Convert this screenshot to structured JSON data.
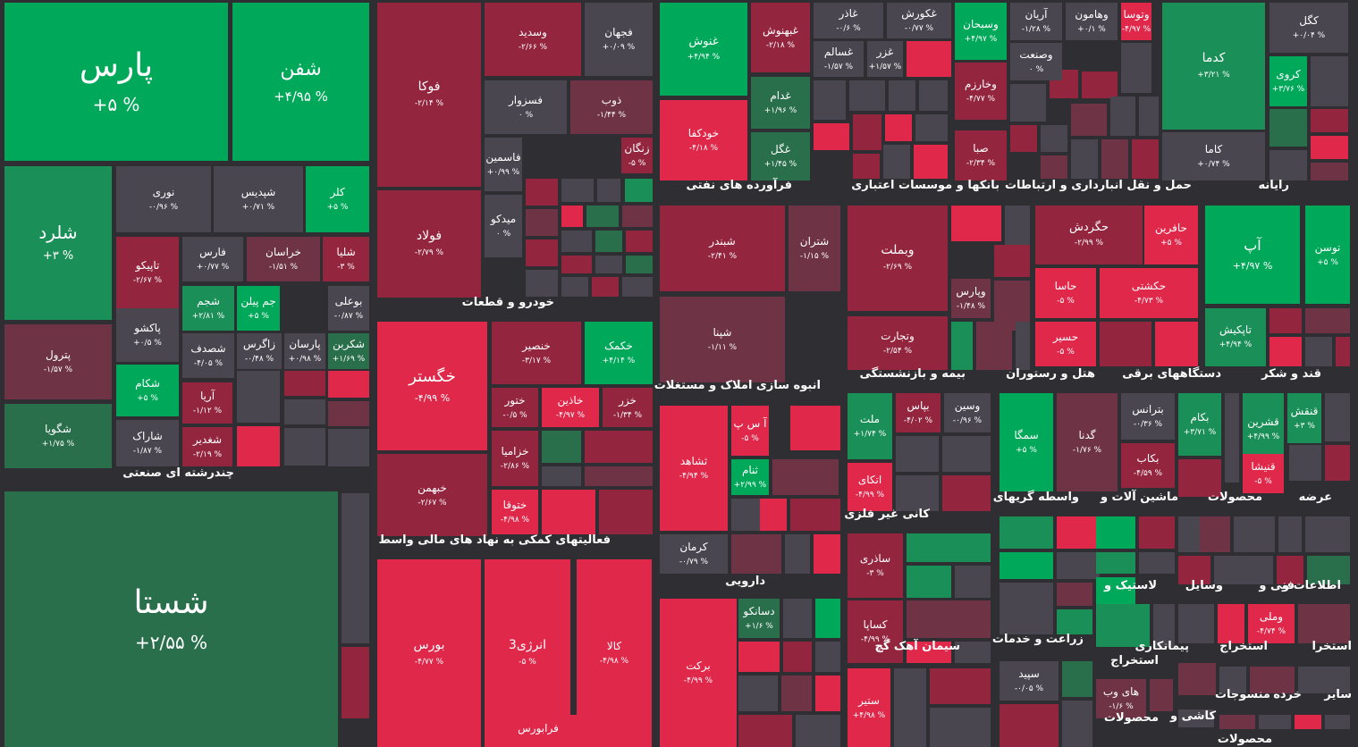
{
  "colors": {
    "strong_gain": "#00a85a",
    "gain": "#1b8f58",
    "weak_gain": "#2a6f4c",
    "neutral": "#4a4650",
    "strong_loss": "#e0284b",
    "loss": "#93253f",
    "weak_loss": "#6e3446",
    "background": "#2f2f33"
  },
  "sectors": [
    "چندرشته ای صنعتی",
    "خودرو و قطعات",
    "فعالیتهای کمکی به نهاد های مالی واسط",
    "فرآورده های نفتی",
    "بانکها و موسسات اعتباری",
    "حمل و نقل انبارداری و ارتباطات",
    "رایانه",
    "انبوه سازی املاک و مستغلات",
    "بیمه و بازنشستگی",
    "هتل و رستوران",
    "دستگاههای برقی",
    "قند و شکر",
    "دارویی",
    "کانی غیر فلزی",
    "واسطه گریهای",
    "ماشین آلات و",
    "محصولات",
    "عرضه",
    "سیمان آهک گچ",
    "زراعت و خدمات",
    "لاستیک و",
    "وسایل",
    "فنی و",
    "اطلاعات و",
    "استخراج",
    "پیمانکاری",
    "استخراج",
    "استخرا",
    "منسوجات",
    "خرده",
    "سایر",
    "کاشی و",
    "محصولات",
    "محصولات"
  ],
  "tiles": [
    {
      "s": "پارس",
      "c": "+۵ %"
    },
    {
      "s": "شفن",
      "c": "+۴/۹۵ %"
    },
    {
      "s": "شلرد",
      "c": "+۳ %"
    },
    {
      "s": "نوری",
      "c": "-۰/۹۶ %"
    },
    {
      "s": "شپدیس",
      "c": "+۰/۷۱ %"
    },
    {
      "s": "کلر",
      "c": "+۵ %"
    },
    {
      "s": "تاپیکو",
      "c": "-۲/۶۷ %"
    },
    {
      "s": "فارس",
      "c": "+۰/۷۷ %"
    },
    {
      "s": "خراسان",
      "c": "-۱/۵۱ %"
    },
    {
      "s": "شلیا",
      "c": "-۳ %"
    },
    {
      "s": "شجم",
      "c": "+۲/۸۱ %"
    },
    {
      "s": "جم پیلن",
      "c": "+۵ %"
    },
    {
      "s": "بوعلی",
      "c": "-۰/۸۷ %"
    },
    {
      "s": "پاکشو",
      "c": "+۰/۵ %"
    },
    {
      "s": "شصدف",
      "c": "-۴/۰۵ %"
    },
    {
      "s": "زاگرس",
      "c": "-۰/۴۸ %"
    },
    {
      "s": "پارسان",
      "c": "+۰/۹۸ %"
    },
    {
      "s": "شکربن",
      "c": "+۱/۶۹ %"
    },
    {
      "s": "پترول",
      "c": "-۱/۵۷ %"
    },
    {
      "s": "شکام",
      "c": "+۵ %"
    },
    {
      "s": "آریا",
      "c": "-۱/۱۲ %"
    },
    {
      "s": "شگویا",
      "c": "+۱/۷۵ %"
    },
    {
      "s": "شاراک",
      "c": "-۱/۸۷ %"
    },
    {
      "s": "شغدیر",
      "c": "-۲/۱۹ %"
    },
    {
      "s": "شستا",
      "c": "+۲/۵۵ %"
    },
    {
      "s": "فوکا",
      "c": "-۲/۱۴ %"
    },
    {
      "s": "وسدید",
      "c": "-۲/۶۶ %"
    },
    {
      "s": "فجهان",
      "c": "+۰/۰۹ %"
    },
    {
      "s": "فسزوار",
      "c": "۰ %"
    },
    {
      "s": "ذوب",
      "c": "-۱/۴۴ %"
    },
    {
      "s": "زنگان",
      "c": "-۵ %"
    },
    {
      "s": "فاسمین",
      "c": "+۰/۹۹ %"
    },
    {
      "s": "فولاد",
      "c": "-۲/۷۹ %"
    },
    {
      "s": "میدکو",
      "c": "۰ %"
    },
    {
      "s": "خگستر",
      "c": "-۴/۹۹ %"
    },
    {
      "s": "خنصیر",
      "c": "-۳/۱۷ %"
    },
    {
      "s": "خکمک",
      "c": "+۴/۱۴ %"
    },
    {
      "s": "ختور",
      "c": "-۰/۵ %"
    },
    {
      "s": "خاذین",
      "c": "-۴/۹۷ %"
    },
    {
      "s": "خزر",
      "c": "-۱/۳۴ %"
    },
    {
      "s": "خزامیا",
      "c": "-۲/۸۶ %"
    },
    {
      "s": "خبهمن",
      "c": "-۲/۶۷ %"
    },
    {
      "s": "ختوقا",
      "c": "-۴/۹۸ %"
    },
    {
      "s": "بورس",
      "c": "-۴/۷۷ %"
    },
    {
      "s": "انرژی3",
      "c": "-۵ %"
    },
    {
      "s": "کالا",
      "c": "-۴/۹۸ %"
    },
    {
      "s": "فرابورس",
      "c": ""
    },
    {
      "s": "غنوش",
      "c": "+۴/۹۴ %"
    },
    {
      "s": "غبهنوش",
      "c": "-۲/۱۸ %"
    },
    {
      "s": "غدام",
      "c": "+۱/۹۶ %"
    },
    {
      "s": "خودکفا",
      "c": "-۴/۱۸ %"
    },
    {
      "s": "غگل",
      "c": "+۱/۴۵ %"
    },
    {
      "s": "غاذر",
      "c": "-۰/۶ %"
    },
    {
      "s": "غکورش",
      "c": "-۰/۷۷ %"
    },
    {
      "s": "غسالم",
      "c": "-۱/۵۷ %"
    },
    {
      "s": "غزر",
      "c": "+۱/۵۷ %"
    },
    {
      "s": "وسبحان",
      "c": "+۴/۹۷ %"
    },
    {
      "s": "آریان",
      "c": "-۱/۲۸ %"
    },
    {
      "s": "وهامون",
      "c": "+۰/۱ %"
    },
    {
      "s": "وتوسا",
      "c": "-۴/۹۷ %"
    },
    {
      "s": "وصنعت",
      "c": "۰ %"
    },
    {
      "s": "وخارزم",
      "c": "-۴/۷۷ %"
    },
    {
      "s": "صبا",
      "c": "-۲/۳۴ %"
    },
    {
      "s": "کدما",
      "c": "+۳/۲۱ %"
    },
    {
      "s": "کگل",
      "c": "+۰/۰۴ %"
    },
    {
      "s": "کروی",
      "c": "+۳/۷۶ %"
    },
    {
      "s": "کاما",
      "c": "+۰/۷۴ %"
    },
    {
      "s": "شبندر",
      "c": "-۲/۴۱ %"
    },
    {
      "s": "شتران",
      "c": "-۱/۱۵ %"
    },
    {
      "s": "شپنا",
      "c": "-۱/۱۱ %"
    },
    {
      "s": "وبملت",
      "c": "-۲/۶۹ %"
    },
    {
      "s": "وپارس",
      "c": "-۱/۴۸ %"
    },
    {
      "s": "وتجارت",
      "c": "-۲/۵۴ %"
    },
    {
      "s": "حگردش",
      "c": "-۲/۹۹ %"
    },
    {
      "s": "حافرین",
      "c": "+۵ %"
    },
    {
      "s": "حاسا",
      "c": "-۵ %"
    },
    {
      "s": "حکشتی",
      "c": "-۴/۷۳ %"
    },
    {
      "s": "حسیر",
      "c": "-۵ %"
    },
    {
      "s": "آپ",
      "c": "+۴/۹۷ %"
    },
    {
      "s": "توسن",
      "c": "+۵ %"
    },
    {
      "s": "تاپکیش",
      "c": "+۴/۹۴ %"
    },
    {
      "s": "ثشاهد",
      "c": "-۴/۹۴ %"
    },
    {
      "s": "آ س پ",
      "c": "-۵ %"
    },
    {
      "s": "ثنام",
      "c": "+۲/۹۹ %"
    },
    {
      "s": "کرمان",
      "c": "-۰/۷۹ %"
    },
    {
      "s": "برکت",
      "c": "-۴/۹۹ %"
    },
    {
      "s": "دسانکو",
      "c": "+۱/۶ %"
    },
    {
      "s": "ملت",
      "c": "+۱/۷۴ %"
    },
    {
      "s": "بپاس",
      "c": "-۴/۰۲ %"
    },
    {
      "s": "وسین",
      "c": "-۰/۹۶ %"
    },
    {
      "s": "اتکای",
      "c": "-۴/۹۹ %"
    },
    {
      "s": "ساذری",
      "c": "-۳ %"
    },
    {
      "s": "کساپا",
      "c": "-۴/۹۹ %"
    },
    {
      "s": "ستیر",
      "c": "+۴/۹۸ %"
    },
    {
      "s": "سمگا",
      "c": "+۵ %"
    },
    {
      "s": "گدنا",
      "c": "-۱/۷۶ %"
    },
    {
      "s": "بترانس",
      "c": "-۰/۳۶ %"
    },
    {
      "s": "بکام",
      "c": "+۳/۷۱ %"
    },
    {
      "s": "بکاب",
      "c": "-۴/۵۹ %"
    },
    {
      "s": "قشرین",
      "c": "+۴/۹۹ %"
    },
    {
      "s": "قنیشا",
      "c": "-۵ %"
    },
    {
      "s": "قنقش",
      "c": "+۳ %"
    },
    {
      "s": "سپید",
      "c": "-۰/۰۵ %"
    },
    {
      "s": "های وب",
      "c": "-۱/۶ %"
    },
    {
      "s": "وملی",
      "c": "-۴/۷۴ %"
    }
  ]
}
